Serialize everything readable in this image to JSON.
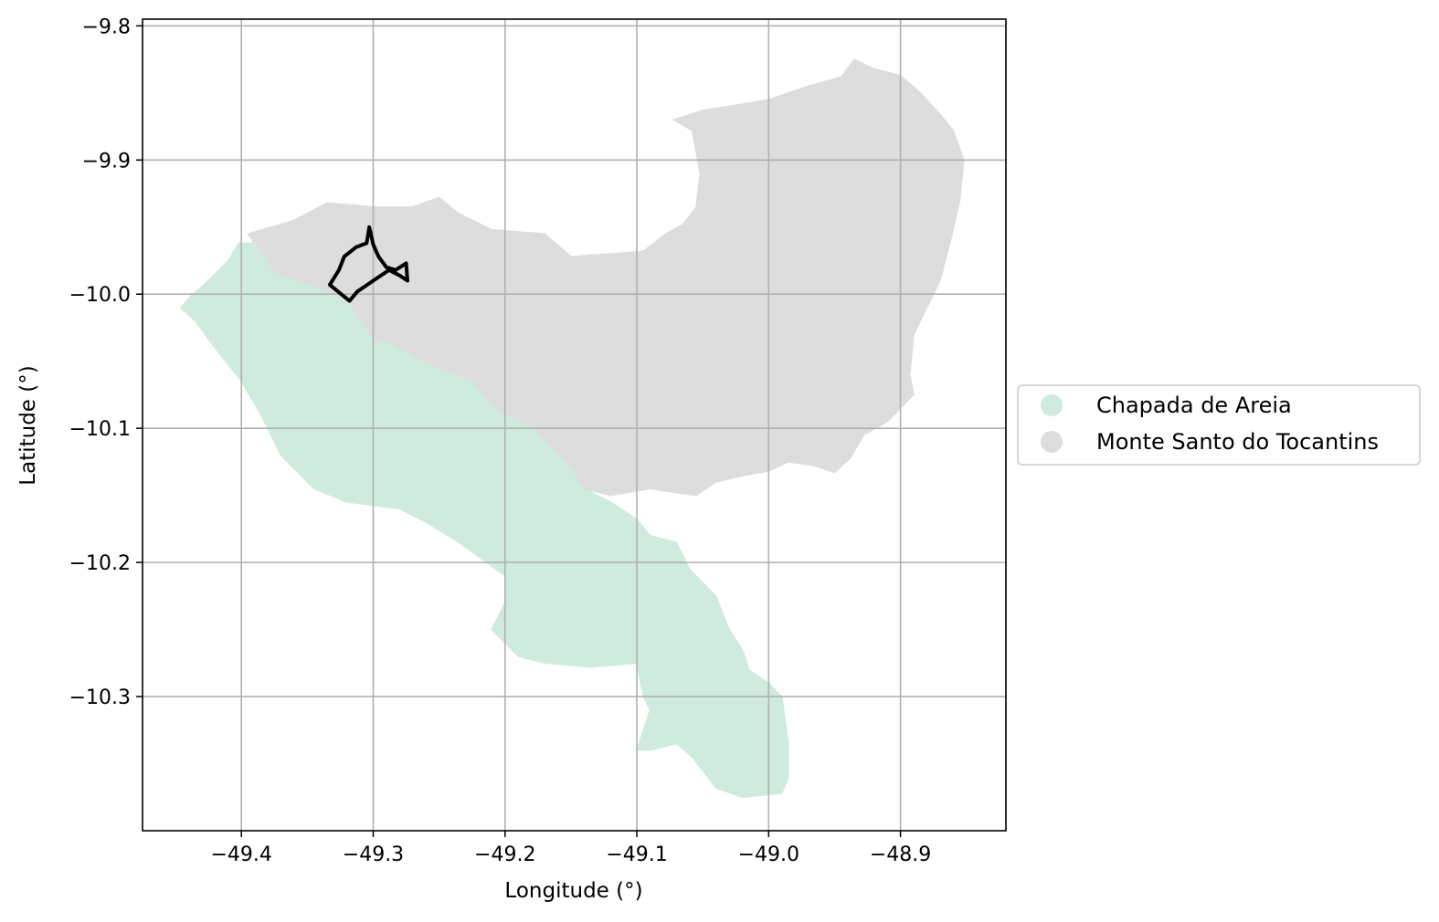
{
  "chart_data": {
    "type": "map",
    "xlabel": "Longitude (°)",
    "ylabel": "Latitude (°)",
    "xlim": [
      -49.475,
      -48.82
    ],
    "ylim": [
      -10.4,
      -9.795
    ],
    "xticks": [
      -49.4,
      -49.3,
      -49.2,
      -49.1,
      -49.0,
      -48.9
    ],
    "yticks": [
      -9.8,
      -9.9,
      -10.0,
      -10.1,
      -10.2,
      -10.3
    ],
    "xtick_labels": [
      "−49.4",
      "−49.3",
      "−49.2",
      "−49.1",
      "−49.0",
      "−48.9"
    ],
    "ytick_labels": [
      "−9.8",
      "−9.9",
      "−10.0",
      "−10.1",
      "−10.2",
      "−10.3"
    ],
    "grid": true,
    "legend_position": "center-right-outside",
    "colors": {
      "chapada": "#cfebde",
      "monte_santo": "#dddddd",
      "outline": "#000000",
      "grid": "#b0b0b0"
    },
    "legend": [
      {
        "label": "Chapada de Areia",
        "color": "#cfebde"
      },
      {
        "label": "Monte Santo do Tocantins",
        "color": "#dddddd"
      }
    ],
    "regions": [
      {
        "name": "Monte Santo do Tocantins",
        "color": "#dddddd",
        "coords": [
          [
            -49.395,
            -9.955
          ],
          [
            -49.36,
            -9.945
          ],
          [
            -49.335,
            -9.932
          ],
          [
            -49.3,
            -9.935
          ],
          [
            -49.27,
            -9.935
          ],
          [
            -49.25,
            -9.928
          ],
          [
            -49.235,
            -9.94
          ],
          [
            -49.21,
            -9.952
          ],
          [
            -49.17,
            -9.955
          ],
          [
            -49.15,
            -9.972
          ],
          [
            -49.12,
            -9.97
          ],
          [
            -49.095,
            -9.968
          ],
          [
            -49.078,
            -9.955
          ],
          [
            -49.065,
            -9.948
          ],
          [
            -49.055,
            -9.935
          ],
          [
            -49.052,
            -9.91
          ],
          [
            -49.058,
            -9.878
          ],
          [
            -49.072,
            -9.87
          ],
          [
            -49.05,
            -9.863
          ],
          [
            -49.0,
            -9.855
          ],
          [
            -48.97,
            -9.845
          ],
          [
            -48.945,
            -9.838
          ],
          [
            -48.935,
            -9.825
          ],
          [
            -48.92,
            -9.832
          ],
          [
            -48.9,
            -9.837
          ],
          [
            -48.885,
            -9.85
          ],
          [
            -48.87,
            -9.866
          ],
          [
            -48.86,
            -9.878
          ],
          [
            -48.852,
            -9.9
          ],
          [
            -48.855,
            -9.93
          ],
          [
            -48.862,
            -9.96
          ],
          [
            -48.87,
            -9.99
          ],
          [
            -48.88,
            -10.01
          ],
          [
            -48.89,
            -10.03
          ],
          [
            -48.893,
            -10.06
          ],
          [
            -48.89,
            -10.075
          ],
          [
            -48.91,
            -10.095
          ],
          [
            -48.928,
            -10.105
          ],
          [
            -48.938,
            -10.122
          ],
          [
            -48.95,
            -10.133
          ],
          [
            -48.965,
            -10.128
          ],
          [
            -48.985,
            -10.125
          ],
          [
            -49.0,
            -10.132
          ],
          [
            -49.018,
            -10.135
          ],
          [
            -49.04,
            -10.14
          ],
          [
            -49.055,
            -10.15
          ],
          [
            -49.07,
            -10.148
          ],
          [
            -49.09,
            -10.145
          ],
          [
            -49.12,
            -10.15
          ],
          [
            -49.14,
            -10.145
          ],
          [
            -49.155,
            -10.125
          ],
          [
            -49.18,
            -10.1
          ],
          [
            -49.2,
            -10.09
          ],
          [
            -49.21,
            -10.085
          ],
          [
            -49.225,
            -10.065
          ],
          [
            -49.24,
            -10.06
          ],
          [
            -49.265,
            -10.05
          ],
          [
            -49.285,
            -10.038
          ],
          [
            -49.3,
            -10.035
          ],
          [
            -49.31,
            -10.02
          ],
          [
            -49.32,
            -10.005
          ],
          [
            -49.345,
            -9.995
          ],
          [
            -49.375,
            -9.985
          ]
        ]
      },
      {
        "name": "Chapada de Areia",
        "color": "#cfebde",
        "coords": [
          [
            -49.402,
            -9.962
          ],
          [
            -49.39,
            -9.962
          ],
          [
            -49.375,
            -9.985
          ],
          [
            -49.345,
            -9.995
          ],
          [
            -49.32,
            -10.005
          ],
          [
            -49.31,
            -10.02
          ],
          [
            -49.3,
            -10.035
          ],
          [
            -49.285,
            -10.038
          ],
          [
            -49.265,
            -10.05
          ],
          [
            -49.24,
            -10.06
          ],
          [
            -49.225,
            -10.065
          ],
          [
            -49.21,
            -10.085
          ],
          [
            -49.2,
            -10.09
          ],
          [
            -49.18,
            -10.1
          ],
          [
            -49.155,
            -10.125
          ],
          [
            -49.14,
            -10.145
          ],
          [
            -49.12,
            -10.155
          ],
          [
            -49.1,
            -10.168
          ],
          [
            -49.09,
            -10.18
          ],
          [
            -49.07,
            -10.185
          ],
          [
            -49.06,
            -10.205
          ],
          [
            -49.04,
            -10.225
          ],
          [
            -49.03,
            -10.25
          ],
          [
            -49.02,
            -10.265
          ],
          [
            -49.015,
            -10.28
          ],
          [
            -49.0,
            -10.29
          ],
          [
            -48.99,
            -10.3
          ],
          [
            -48.985,
            -10.335
          ],
          [
            -48.985,
            -10.36
          ],
          [
            -48.99,
            -10.372
          ],
          [
            -49.02,
            -10.375
          ],
          [
            -49.04,
            -10.368
          ],
          [
            -49.058,
            -10.345
          ],
          [
            -49.07,
            -10.335
          ],
          [
            -49.09,
            -10.34
          ],
          [
            -49.1,
            -10.34
          ],
          [
            -49.09,
            -10.31
          ],
          [
            -49.095,
            -10.3
          ],
          [
            -49.1,
            -10.275
          ],
          [
            -49.135,
            -10.278
          ],
          [
            -49.17,
            -10.275
          ],
          [
            -49.19,
            -10.27
          ],
          [
            -49.21,
            -10.25
          ],
          [
            -49.2,
            -10.23
          ],
          [
            -49.2,
            -10.21
          ],
          [
            -49.235,
            -10.185
          ],
          [
            -49.26,
            -10.17
          ],
          [
            -49.28,
            -10.16
          ],
          [
            -49.32,
            -10.155
          ],
          [
            -49.345,
            -10.145
          ],
          [
            -49.37,
            -10.12
          ],
          [
            -49.385,
            -10.09
          ],
          [
            -49.4,
            -10.065
          ],
          [
            -49.42,
            -10.04
          ],
          [
            -49.435,
            -10.02
          ],
          [
            -49.446,
            -10.01
          ],
          [
            -49.44,
            -10.003
          ],
          [
            -49.425,
            -9.99
          ],
          [
            -49.41,
            -9.975
          ]
        ]
      }
    ],
    "outline": {
      "color": "#000000",
      "coords": [
        [
          -49.333,
          -9.993
        ],
        [
          -49.326,
          -9.982
        ],
        [
          -49.322,
          -9.972
        ],
        [
          -49.313,
          -9.965
        ],
        [
          -49.305,
          -9.962
        ],
        [
          -49.303,
          -9.95
        ],
        [
          -49.3,
          -9.963
        ],
        [
          -49.296,
          -9.972
        ],
        [
          -49.29,
          -9.98
        ],
        [
          -49.283,
          -9.982
        ],
        [
          -49.275,
          -9.977
        ],
        [
          -49.274,
          -9.99
        ],
        [
          -49.28,
          -9.986
        ],
        [
          -49.288,
          -9.982
        ],
        [
          -49.3,
          -9.99
        ],
        [
          -49.312,
          -9.998
        ],
        [
          -49.318,
          -10.005
        ]
      ]
    }
  }
}
